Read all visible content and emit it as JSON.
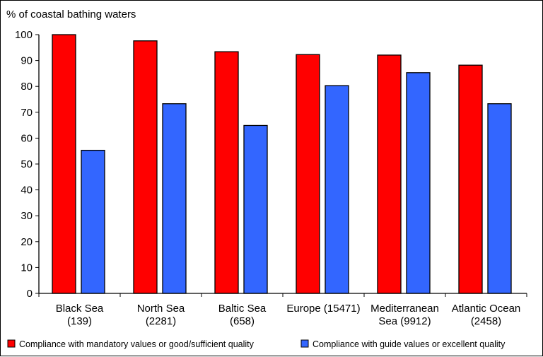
{
  "chart_data": {
    "type": "bar",
    "ylabel": "% of coastal bathing waters",
    "title": "",
    "xlabel": "",
    "ylim": [
      0,
      100
    ],
    "yticks": [
      0,
      10,
      20,
      30,
      40,
      50,
      60,
      70,
      80,
      90,
      100
    ],
    "grid": false,
    "legend_position": "bottom",
    "categories": [
      [
        "Black Sea",
        "(139)"
      ],
      [
        "North Sea",
        "(2281)"
      ],
      [
        "Baltic Sea",
        "(658)"
      ],
      [
        "Europe (15471)"
      ],
      [
        "Mediterranean",
        "Sea (9912)"
      ],
      [
        "Atlantic Ocean",
        "(2458)"
      ]
    ],
    "series": [
      {
        "name": "Compliance with mandatory values or good/sufficient quality",
        "color": "#ff0000",
        "values": [
          100,
          97.6,
          93.4,
          92.3,
          92.1,
          88.2
        ]
      },
      {
        "name": "Compliance with guide values or excellent quality",
        "color": "#3366ff",
        "values": [
          55.3,
          73.3,
          64.9,
          80.3,
          85.3,
          73.3
        ]
      }
    ]
  }
}
